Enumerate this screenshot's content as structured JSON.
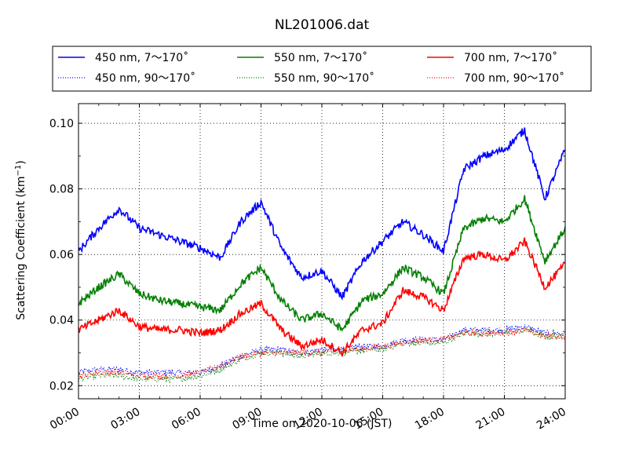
{
  "chart_data": {
    "type": "line",
    "title": "NL201006.dat",
    "xlabel": "Time on 2020-10-06 (JST)",
    "ylabel": "Scattering Coefficient (km",
    "ylabel_sup": "−1",
    "ylabel_close": ")",
    "xlim_hours": [
      0,
      24
    ],
    "ylim": [
      0.016,
      0.106
    ],
    "grid": true,
    "legend_position": "top",
    "x_ticks": [
      "00:00",
      "03:00",
      "06:00",
      "09:00",
      "12:00",
      "15:00",
      "18:00",
      "21:00",
      "24:00"
    ],
    "y_ticks": [
      "0.02",
      "0.04",
      "0.06",
      "0.08",
      "0.10"
    ],
    "y_tick_values": [
      0.02,
      0.04,
      0.06,
      0.08,
      0.1
    ],
    "hours": [
      0,
      1,
      2,
      3,
      4,
      5,
      6,
      7,
      8,
      9,
      10,
      11,
      12,
      13,
      14,
      15,
      16,
      17,
      18,
      19,
      20,
      21,
      22,
      23,
      24
    ],
    "series": [
      {
        "name": "450 nm, 7～170˚",
        "color": "#0000ff",
        "style": "solid",
        "values": [
          0.061,
          0.068,
          0.074,
          0.068,
          0.066,
          0.064,
          0.062,
          0.059,
          0.07,
          0.076,
          0.062,
          0.053,
          0.055,
          0.047,
          0.058,
          0.064,
          0.07,
          0.066,
          0.061,
          0.086,
          0.09,
          0.092,
          0.098,
          0.077,
          0.092
        ]
      },
      {
        "name": "550 nm, 7～170˚",
        "color": "#008000",
        "style": "solid",
        "values": [
          0.045,
          0.05,
          0.054,
          0.048,
          0.046,
          0.045,
          0.044,
          0.043,
          0.051,
          0.056,
          0.046,
          0.04,
          0.042,
          0.037,
          0.046,
          0.048,
          0.056,
          0.053,
          0.048,
          0.068,
          0.071,
          0.07,
          0.077,
          0.058,
          0.068
        ]
      },
      {
        "name": "700 nm, 7～170˚",
        "color": "#ff0000",
        "style": "solid",
        "values": [
          0.037,
          0.04,
          0.043,
          0.038,
          0.037,
          0.037,
          0.036,
          0.037,
          0.042,
          0.045,
          0.037,
          0.032,
          0.034,
          0.03,
          0.037,
          0.039,
          0.049,
          0.047,
          0.043,
          0.059,
          0.06,
          0.058,
          0.064,
          0.05,
          0.057
        ]
      },
      {
        "name": "450 nm, 90～170˚",
        "color": "#0000ff",
        "style": "dotted",
        "values": [
          0.024,
          0.025,
          0.025,
          0.024,
          0.024,
          0.024,
          0.024,
          0.026,
          0.029,
          0.031,
          0.031,
          0.03,
          0.031,
          0.031,
          0.032,
          0.032,
          0.034,
          0.034,
          0.034,
          0.037,
          0.037,
          0.037,
          0.038,
          0.036,
          0.036
        ]
      },
      {
        "name": "550 nm, 90～170˚",
        "color": "#008000",
        "style": "dotted",
        "values": [
          0.022,
          0.023,
          0.023,
          0.022,
          0.022,
          0.022,
          0.023,
          0.025,
          0.028,
          0.03,
          0.03,
          0.029,
          0.03,
          0.03,
          0.031,
          0.031,
          0.033,
          0.033,
          0.033,
          0.036,
          0.036,
          0.036,
          0.037,
          0.035,
          0.035
        ]
      },
      {
        "name": "700 nm, 90～170˚",
        "color": "#ff0000",
        "style": "dotted",
        "values": [
          0.023,
          0.024,
          0.024,
          0.023,
          0.023,
          0.023,
          0.024,
          0.026,
          0.029,
          0.03,
          0.03,
          0.03,
          0.03,
          0.031,
          0.031,
          0.032,
          0.033,
          0.034,
          0.034,
          0.036,
          0.036,
          0.036,
          0.037,
          0.035,
          0.035
        ]
      }
    ]
  }
}
